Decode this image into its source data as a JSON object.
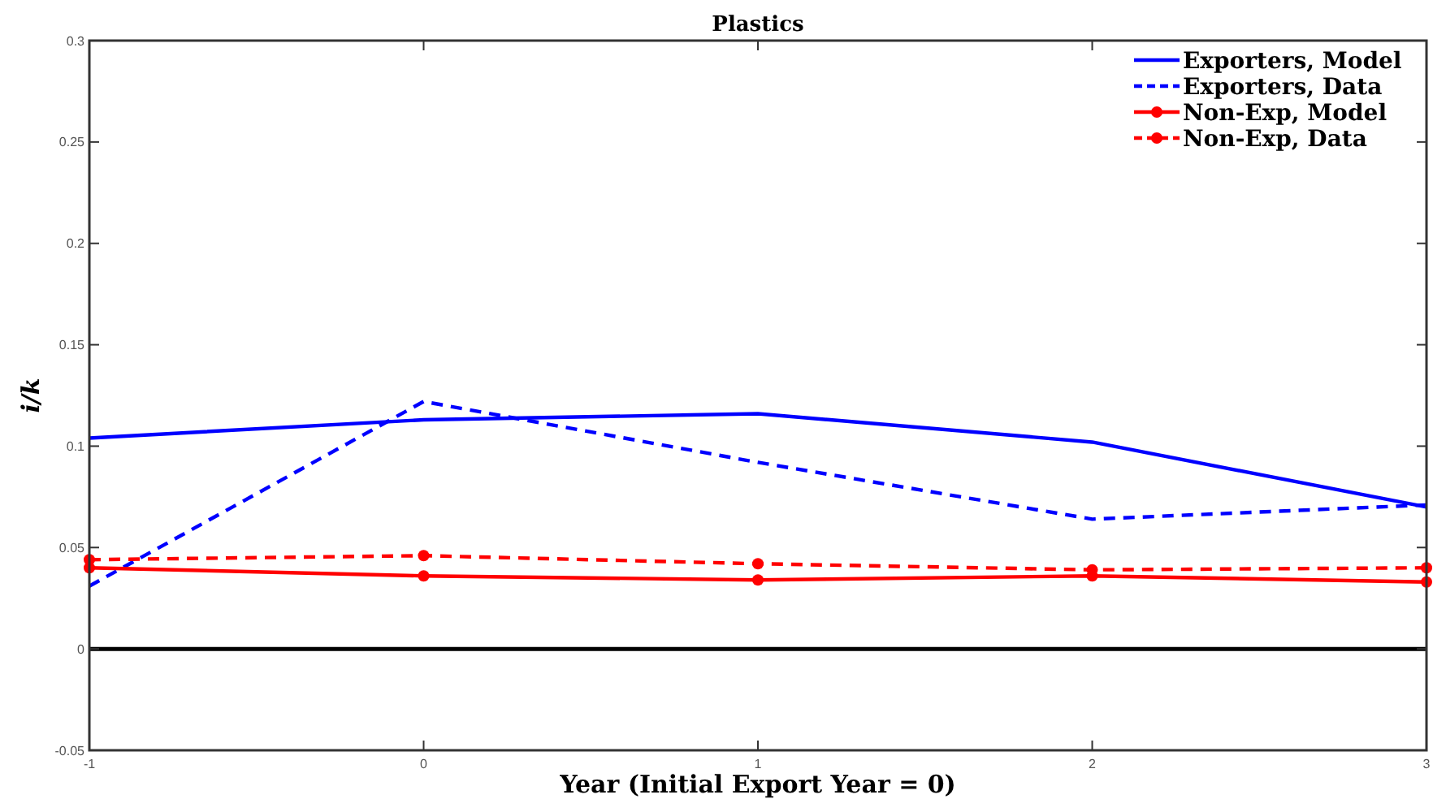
{
  "chart_data": {
    "type": "line",
    "title": "Plastics",
    "xlabel": "Year (Initial Export Year = 0)",
    "ylabel": "i/k",
    "x": [
      -1,
      0,
      1,
      2,
      3
    ],
    "xlim": [
      -1,
      3
    ],
    "xticks": [
      -1,
      0,
      1,
      2,
      3
    ],
    "ylim": [
      -0.05,
      0.3
    ],
    "yticks": [
      -0.05,
      0,
      0.05,
      0.1,
      0.15,
      0.2,
      0.25,
      0.3
    ],
    "legend": "top right",
    "grid": false,
    "ref_lines": [
      {
        "axis": "y",
        "value": 0,
        "color": "#000000",
        "line_style": "solid"
      }
    ],
    "series": [
      {
        "name": "Exporters, Model",
        "color": "#0000ff",
        "line_style": "solid",
        "marker": "none",
        "values": [
          0.104,
          0.113,
          0.116,
          0.102,
          0.07
        ]
      },
      {
        "name": "Exporters, Data",
        "color": "#0000ff",
        "line_style": "dashed",
        "marker": "none",
        "values": [
          0.031,
          0.122,
          0.092,
          0.064,
          0.071
        ]
      },
      {
        "name": "Non-Exp, Model",
        "color": "#ff0000",
        "line_style": "solid",
        "marker": "circle",
        "values": [
          0.04,
          0.036,
          0.034,
          0.036,
          0.033
        ]
      },
      {
        "name": "Non-Exp, Data",
        "color": "#ff0000",
        "line_style": "dashed",
        "marker": "circle",
        "values": [
          0.044,
          0.046,
          0.042,
          0.039,
          0.04
        ]
      }
    ]
  }
}
